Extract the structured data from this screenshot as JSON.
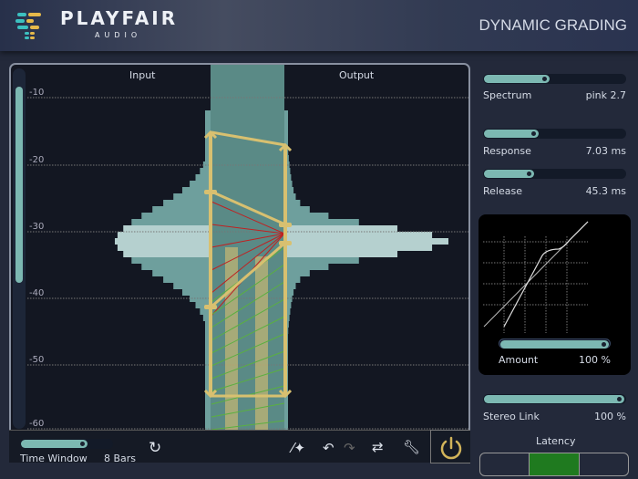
{
  "header": {
    "brand": "PLAYFAIR",
    "brand_sub": "AUDIO",
    "title": "DYNAMIC GRADING",
    "logo_colors": [
      "#3cc0c0",
      "#e6b94a"
    ]
  },
  "main": {
    "input_label": "Input",
    "output_label": "Output",
    "db_ticks": [
      "-10",
      "-20",
      "-30",
      "-40",
      "-50",
      "-60"
    ]
  },
  "toolbar": {
    "time_window_label": "Time Window",
    "time_window_value": "8 Bars",
    "time_window_fill": 0.72,
    "icons": [
      "refresh-icon",
      "magic-wand-icon",
      "undo-icon",
      "redo-icon",
      "swap-icon",
      "wrench-icon",
      "power-icon"
    ]
  },
  "controls": {
    "spectrum": {
      "label": "Spectrum",
      "value": "pink 2.7",
      "fill": 0.46
    },
    "response": {
      "label": "Response",
      "value": "7.03 ms",
      "fill": 0.38
    },
    "release": {
      "label": "Release",
      "value": "45.3 ms",
      "fill": 0.35
    },
    "amount": {
      "label": "Amount",
      "value": "100 %",
      "fill": 1.0
    },
    "stereo_link": {
      "label": "Stereo Link",
      "value": "100 %",
      "fill": 1.0
    },
    "latency": {
      "label": "Latency",
      "selected": 1
    }
  },
  "colors": {
    "accent": "#7cb8b2",
    "handle": "#d8c070",
    "bg": "#131722"
  }
}
